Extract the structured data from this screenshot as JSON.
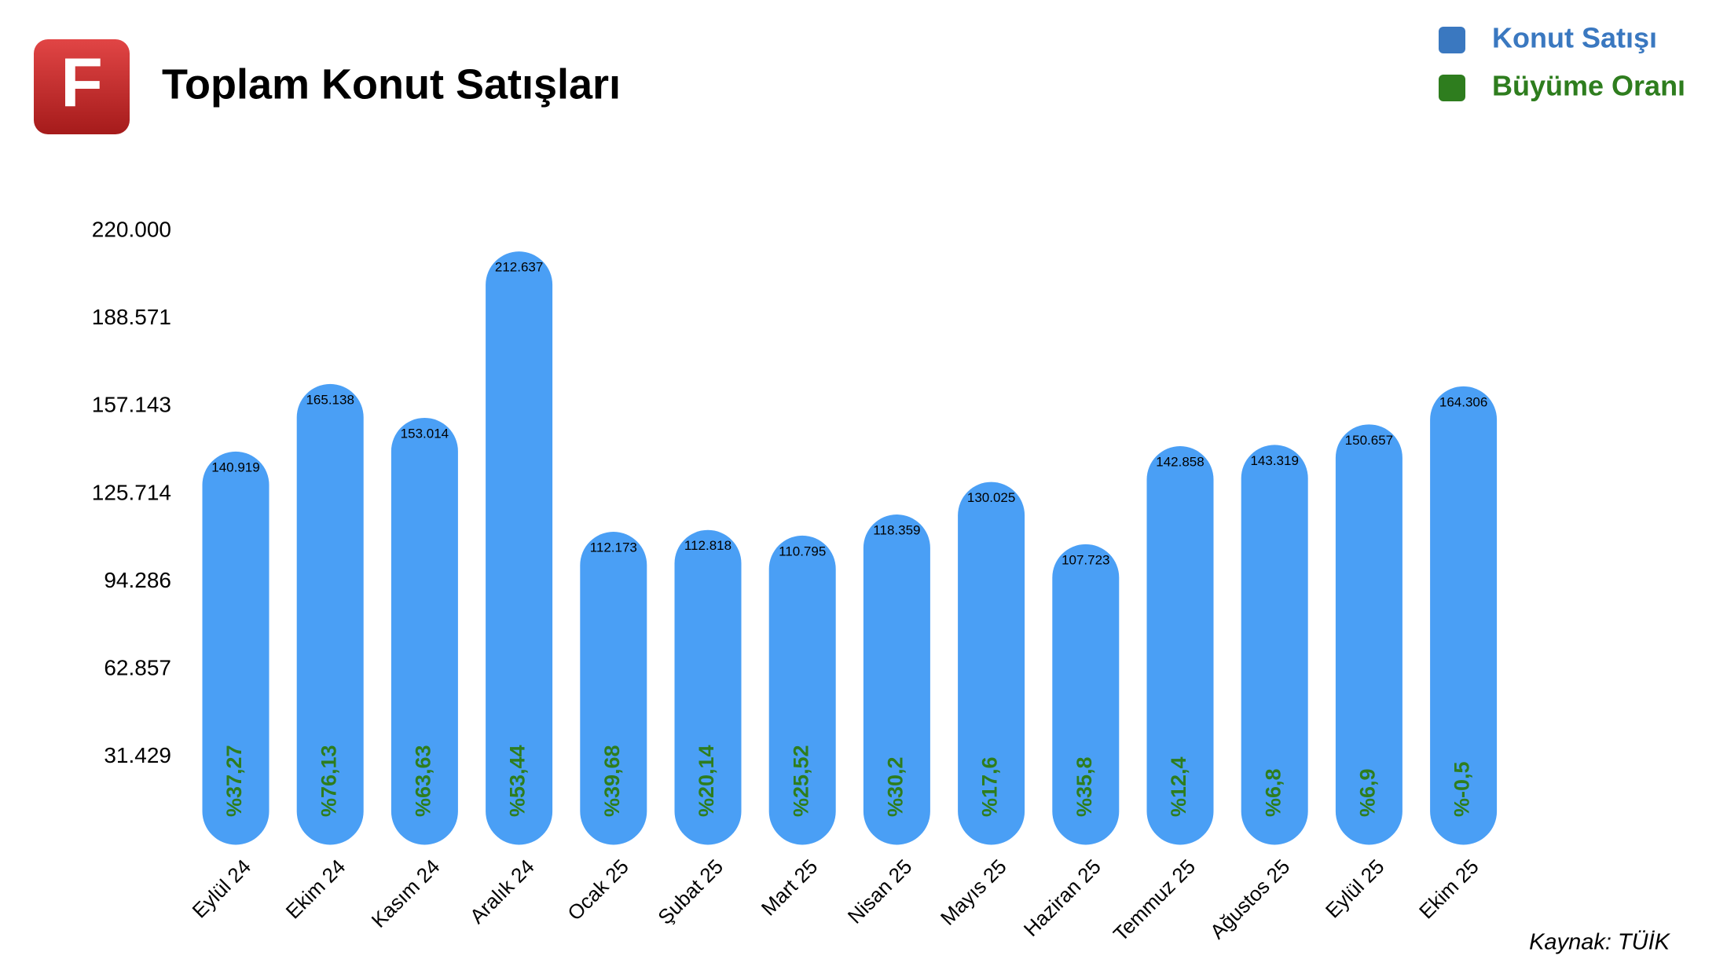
{
  "logo": "F",
  "chart_data": {
    "type": "bar",
    "title": "Toplam Konut Satışları",
    "source": "Kaynak: TÜİK",
    "categories": [
      "Eylül 24",
      "Ekim 24",
      "Kasım 24",
      "Aralık 24",
      "Ocak 25",
      "Şubat 25",
      "Mart 25",
      "Nisan 25",
      "Mayıs 25",
      "Haziran 25",
      "Temmuz 25",
      "Ağustos 25",
      "Eylül 25",
      "Ekim 25"
    ],
    "series": [
      {
        "name": "Konut Satışı",
        "color": "#4a9ff5",
        "legend_color": "#3a78c0",
        "values": [
          140919,
          165138,
          153014,
          212637,
          112173,
          112818,
          110795,
          118359,
          130025,
          107723,
          142858,
          143319,
          150657,
          164306
        ],
        "value_labels": [
          "140.919",
          "165.138",
          "153.014",
          "212.637",
          "112.173",
          "112.818",
          "110.795",
          "118.359",
          "130.025",
          "107.723",
          "142.858",
          "143.319",
          "150.657",
          "164.306"
        ]
      },
      {
        "name": "Büyüme Oranı",
        "color": "#2e7d1e",
        "values": [
          37.27,
          76.13,
          63.63,
          53.44,
          39.68,
          20.14,
          25.52,
          30.2,
          17.6,
          35.8,
          12.4,
          6.8,
          6.9,
          -0.5
        ],
        "value_labels": [
          "%37,27",
          "%76,13",
          "%63,63",
          "%53,44",
          "%39,68",
          "%20,14",
          "%25,52",
          "%30,2",
          "%17,6",
          "%35,8",
          "%12,4",
          "%6,8",
          "%6,9",
          "%-0,5"
        ]
      }
    ],
    "ylim": [
      0,
      220000
    ],
    "yticks": [
      {
        "value": 31429,
        "label": "31.429"
      },
      {
        "value": 62857,
        "label": "62.857"
      },
      {
        "value": 94286,
        "label": "94.286"
      },
      {
        "value": 125714,
        "label": "125.714"
      },
      {
        "value": 157143,
        "label": "157.143"
      },
      {
        "value": 188571,
        "label": "188.571"
      },
      {
        "value": 220000,
        "label": "220.000"
      }
    ],
    "grid": false
  }
}
